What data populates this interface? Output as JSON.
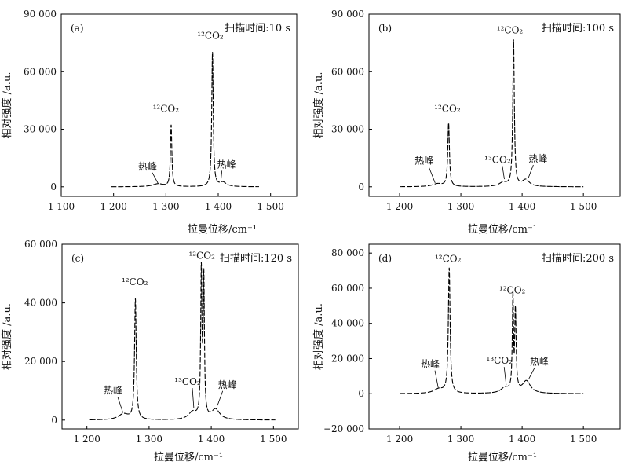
{
  "chart_data": [
    {
      "type": "line",
      "panel_label": "(a)",
      "scan_time_label": "扫描时间:10 s",
      "xlabel": "拉曼位移/cm⁻¹",
      "ylabel": "相对强度 /a.u.",
      "xlim": [
        1100,
        1550
      ],
      "ylim": [
        -5000,
        90000
      ],
      "x_ticks": [
        1100,
        1200,
        1300,
        1400,
        1500
      ],
      "x_tick_labels": [
        "1 100",
        "1 200",
        "1 300",
        "1 400",
        "1 500"
      ],
      "y_ticks": [
        0,
        30000,
        60000,
        90000
      ],
      "y_tick_labels": [
        "0",
        "30 000",
        "60 000",
        "90 000"
      ],
      "x_range": [
        1195,
        1478
      ],
      "baseline": 0,
      "peaks": [
        {
          "center": 1285,
          "height": 1500,
          "width": 12
        },
        {
          "center": 1310,
          "height": 32000,
          "width": 1.6
        },
        {
          "center": 1389,
          "height": 70000,
          "width": 1.7
        },
        {
          "center": 1409,
          "height": 2200,
          "width": 8
        }
      ],
      "annotations": [
        {
          "text": "热峰",
          "x": 1265,
          "y": 9000,
          "arrow_to": [
            1285,
            1800
          ]
        },
        {
          "text": "¹²CO₂",
          "x": 1300,
          "y": 39000
        },
        {
          "text": "¹²CO₂",
          "x": 1385,
          "y": 77000
        },
        {
          "text": "热峰",
          "x": 1416,
          "y": 10000,
          "arrow_to": [
            1405,
            3000
          ]
        }
      ]
    },
    {
      "type": "line",
      "panel_label": "(b)",
      "scan_time_label": "扫描时间:100 s",
      "xlabel": "拉曼位移/cm⁻¹",
      "ylabel": "相对强度 /a.u.",
      "xlim": [
        1150,
        1560
      ],
      "ylim": [
        -5000,
        90000
      ],
      "x_ticks": [
        1200,
        1300,
        1400,
        1500
      ],
      "x_tick_labels": [
        "1 200",
        "1 300",
        "1 400",
        "1 500"
      ],
      "y_ticks": [
        0,
        30000,
        60000,
        90000
      ],
      "y_tick_labels": [
        "0",
        "30 000",
        "60 000",
        "90 000"
      ],
      "x_range": [
        1200,
        1500
      ],
      "baseline": 0,
      "peaks": [
        {
          "center": 1262,
          "height": 1500,
          "width": 10
        },
        {
          "center": 1280,
          "height": 33000,
          "width": 1.6
        },
        {
          "center": 1369,
          "height": 2000,
          "width": 8
        },
        {
          "center": 1386,
          "height": 76000,
          "width": 1.5
        },
        {
          "center": 1406,
          "height": 3500,
          "width": 7
        }
      ],
      "annotations": [
        {
          "text": "热峰",
          "x": 1240,
          "y": 12000,
          "arrow_to": [
            1258,
            2000
          ]
        },
        {
          "text": "¹²CO₂",
          "x": 1278,
          "y": 39000
        },
        {
          "text": "¹³CO₂",
          "x": 1360,
          "y": 12500,
          "arrow_to": [
            1371,
            4000
          ]
        },
        {
          "text": "¹²CO₂",
          "x": 1380,
          "y": 80000
        },
        {
          "text": "热峰",
          "x": 1426,
          "y": 13000,
          "arrow_to": [
            1410,
            4500
          ]
        }
      ]
    },
    {
      "type": "line",
      "panel_label": "(c)",
      "scan_time_label": "扫描时间:120 s",
      "xlabel": "拉曼位移/cm⁻¹",
      "ylabel": "相对强度 /a.u.",
      "xlim": [
        1160,
        1540
      ],
      "ylim": [
        -3000,
        60000
      ],
      "x_ticks": [
        1200,
        1300,
        1400,
        1500
      ],
      "x_tick_labels": [
        "1 200",
        "1 300",
        "1 400",
        "1 500"
      ],
      "y_ticks": [
        0,
        20000,
        40000,
        60000
      ],
      "y_tick_labels": [
        "0",
        "20 000",
        "40 000",
        "60 000"
      ],
      "x_range": [
        1205,
        1503
      ],
      "baseline": 0,
      "peaks": [
        {
          "center": 1259,
          "height": 2000,
          "width": 10
        },
        {
          "center": 1278,
          "height": 41000,
          "width": 1.6
        },
        {
          "center": 1370,
          "height": 2500,
          "width": 8
        },
        {
          "center": 1384,
          "height": 49000,
          "width": 1.2
        },
        {
          "center": 1388,
          "height": 47000,
          "width": 1.2
        },
        {
          "center": 1407,
          "height": 3500,
          "width": 8
        }
      ],
      "annotations": [
        {
          "text": "热峰",
          "x": 1242,
          "y": 9000,
          "arrow_to": [
            1258,
            2500
          ]
        },
        {
          "text": "¹²CO₂",
          "x": 1277,
          "y": 46000
        },
        {
          "text": "¹³CO₂",
          "x": 1362,
          "y": 12000,
          "arrow_to": [
            1372,
            4000
          ]
        },
        {
          "text": "¹²CO₂",
          "x": 1385,
          "y": 55000
        },
        {
          "text": "热峰",
          "x": 1426,
          "y": 11000,
          "arrow_to": [
            1410,
            5000
          ]
        }
      ]
    },
    {
      "type": "line",
      "panel_label": "(d)",
      "scan_time_label": "扫描时间:200 s",
      "xlabel": "拉曼位移/cm⁻¹",
      "ylabel": "相对强度 /a.u.",
      "xlim": [
        1150,
        1560
      ],
      "ylim": [
        -20000,
        85000
      ],
      "x_ticks": [
        1200,
        1300,
        1400,
        1500
      ],
      "x_tick_labels": [
        "1 200",
        "1 300",
        "1 400",
        "1 500"
      ],
      "y_ticks": [
        -20000,
        0,
        20000,
        40000,
        60000,
        80000
      ],
      "y_tick_labels": [
        "−20 000",
        "0",
        "20 000",
        "40 000",
        "60 000",
        "80 000"
      ],
      "x_range": [
        1200,
        1500
      ],
      "baseline": 0,
      "peaks": [
        {
          "center": 1264,
          "height": 2500,
          "width": 10
        },
        {
          "center": 1281,
          "height": 71000,
          "width": 1.7
        },
        {
          "center": 1372,
          "height": 3000,
          "width": 8
        },
        {
          "center": 1385,
          "height": 53000,
          "width": 1.2
        },
        {
          "center": 1389,
          "height": 45000,
          "width": 1.4
        },
        {
          "center": 1407,
          "height": 7000,
          "width": 8
        }
      ],
      "dip": {
        "center": 1387,
        "height": -8000,
        "width": 0.7
      },
      "annotations": [
        {
          "text": "热峰",
          "x": 1250,
          "y": 15000,
          "arrow_to": [
            1263,
            3500
          ]
        },
        {
          "text": "¹²CO₂",
          "x": 1279,
          "y": 75000
        },
        {
          "text": "¹³CO₂",
          "x": 1363,
          "y": 17000,
          "arrow_to": [
            1374,
            5000
          ]
        },
        {
          "text": "¹²CO₂",
          "x": 1384,
          "y": 57000
        },
        {
          "text": "热峰",
          "x": 1428,
          "y": 16500,
          "arrow_to": [
            1411,
            8500
          ]
        }
      ]
    }
  ]
}
